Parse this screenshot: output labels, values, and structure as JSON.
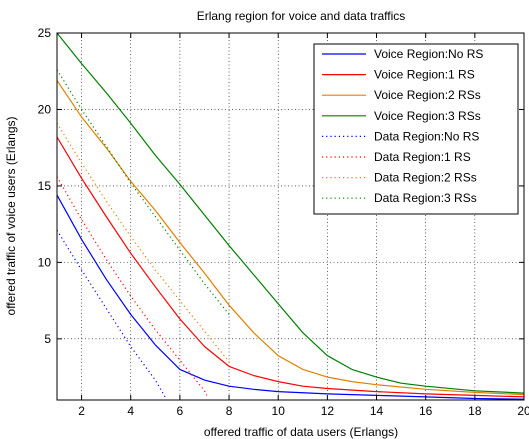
{
  "chart_data": {
    "type": "line",
    "title": "Erlang region for voice and data traffics",
    "xlabel": "offered traffic of data users (Erlangs)",
    "ylabel": "offered traffic of voice users (Erlangs)",
    "xlim": [
      1,
      20
    ],
    "ylim": [
      1,
      25
    ],
    "x_ticks": [
      2,
      4,
      6,
      8,
      10,
      12,
      14,
      16,
      18,
      20
    ],
    "y_ticks": [
      5,
      10,
      15,
      20,
      25
    ],
    "grid": true,
    "legend_position": "top-right",
    "series": [
      {
        "name": "Voice Region:No RS",
        "color": "#0000ff",
        "dash": "solid",
        "x": [
          1,
          2,
          3,
          4,
          5,
          6,
          7,
          8,
          9,
          10,
          12,
          14,
          16,
          18,
          20
        ],
        "y": [
          14.4,
          11.5,
          8.9,
          6.6,
          4.6,
          3.0,
          2.3,
          1.9,
          1.7,
          1.55,
          1.4,
          1.3,
          1.2,
          1.1,
          1.05
        ]
      },
      {
        "name": "Voice Region:1 RS",
        "color": "#ff0000",
        "dash": "solid",
        "x": [
          1,
          2,
          3,
          4,
          5,
          6,
          7,
          8,
          9,
          10,
          11,
          12,
          14,
          16,
          18,
          20
        ],
        "y": [
          18.2,
          15.5,
          13.0,
          10.6,
          8.4,
          6.3,
          4.5,
          3.2,
          2.6,
          2.2,
          1.9,
          1.75,
          1.55,
          1.4,
          1.3,
          1.2
        ]
      },
      {
        "name": "Voice Region:2 RSs",
        "color": "#e08000",
        "dash": "solid",
        "x": [
          1,
          2,
          3,
          4,
          5,
          6,
          7,
          8,
          9,
          10,
          11,
          12,
          13,
          14,
          16,
          18,
          20
        ],
        "y": [
          21.9,
          19.5,
          17.5,
          15.3,
          13.4,
          11.3,
          9.3,
          7.2,
          5.4,
          3.9,
          3.0,
          2.5,
          2.2,
          2.0,
          1.7,
          1.5,
          1.35
        ]
      },
      {
        "name": "Voice Region:3 RSs",
        "color": "#008000",
        "dash": "solid",
        "x": [
          1,
          2,
          3,
          4,
          5,
          6,
          7,
          8,
          9,
          10,
          11,
          12,
          13,
          14,
          15,
          16,
          18,
          20
        ],
        "y": [
          25.0,
          23.0,
          21.1,
          19.1,
          17.0,
          15.1,
          13.1,
          11.1,
          9.2,
          7.3,
          5.4,
          3.9,
          3.0,
          2.5,
          2.1,
          1.9,
          1.6,
          1.45
        ]
      },
      {
        "name": "Data Region:No RS",
        "color": "#0000ff",
        "dash": "dotted",
        "x": [
          1,
          2,
          3,
          4,
          5,
          5.4
        ],
        "y": [
          12.1,
          9.5,
          7.0,
          4.5,
          2.3,
          1.2
        ]
      },
      {
        "name": "Data Region:1 RS",
        "color": "#ff0000",
        "dash": "dotted",
        "x": [
          1,
          2,
          3,
          4,
          5,
          6,
          7,
          7.1
        ],
        "y": [
          15.6,
          12.8,
          10.2,
          7.8,
          5.6,
          3.6,
          1.6,
          1.3
        ]
      },
      {
        "name": "Data Region:2 RSs",
        "color": "#e08000",
        "dash": "dotted",
        "x": [
          1,
          2,
          3,
          4,
          5,
          6,
          7,
          8
        ],
        "y": [
          19.1,
          16.5,
          14.0,
          11.7,
          9.5,
          7.5,
          5.5,
          3.5
        ]
      },
      {
        "name": "Data Region:3 RSs",
        "color": "#008000",
        "dash": "dotted",
        "x": [
          1,
          2,
          3,
          4,
          5,
          6,
          7,
          8
        ],
        "y": [
          22.6,
          20.0,
          17.6,
          15.2,
          13.0,
          10.8,
          8.6,
          6.6
        ]
      }
    ]
  }
}
